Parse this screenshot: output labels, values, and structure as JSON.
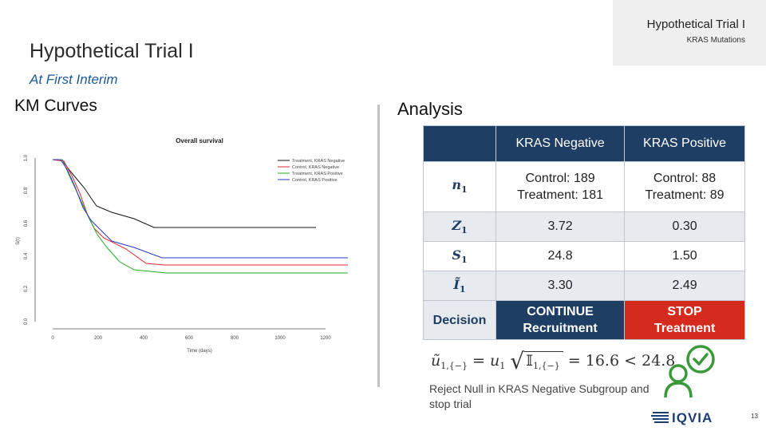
{
  "header": {
    "tag_title": "Hypothetical Trial I",
    "tag_subtitle": "KRAS Mutations",
    "title": "Hypothetical Trial I",
    "subtitle": "At First Interim",
    "left_heading": "KM Curves",
    "right_heading": "Analysis"
  },
  "km_plot": {
    "title": "Overall survival",
    "xlabel": "Time (days)",
    "ylabel": "S(t)",
    "x_ticks": [
      "0",
      "200",
      "400",
      "600",
      "800",
      "1000",
      "1200"
    ],
    "y_ticks": [
      "0.0",
      "0.2",
      "0.4",
      "0.6",
      "0.8",
      "1.0"
    ],
    "legend": [
      {
        "label": "Treatment, KRAS Negative",
        "color": "#111111"
      },
      {
        "label": "Control, KRAS Negative",
        "color": "#e0242c"
      },
      {
        "label": "Treatment, KRAS Positive",
        "color": "#22aa22"
      },
      {
        "label": "Control, KRAS Positive",
        "color": "#2a35c9"
      }
    ]
  },
  "table": {
    "columns": [
      "KRAS Negative",
      "KRAS Positive"
    ],
    "rows": {
      "n": {
        "symbol": "n",
        "sub": "1",
        "neg_l1": "Control: 189",
        "neg_l2": "Treatment: 181",
        "pos_l1": "Control: 88",
        "pos_l2": "Treatment: 89"
      },
      "z": {
        "symbol": "Z",
        "sub": "1",
        "neg": "3.72",
        "pos": "0.30"
      },
      "s": {
        "symbol": "S",
        "sub": "1",
        "neg": "24.8",
        "pos": "1.50"
      },
      "i": {
        "symbol": "Ĩ",
        "sub": "1",
        "neg": "3.30",
        "pos": "2.49"
      },
      "decision": {
        "label": "Decision",
        "neg_l1": "CONTINUE",
        "neg_l2": "Recruitment",
        "pos_l1": "STOP",
        "pos_l2": "Treatment"
      }
    }
  },
  "formula": {
    "lhs": "ũ",
    "lhs_sub": "1,{−}",
    "u": "u",
    "u_sub": "1",
    "radicand": "𝕀",
    "radicand_sub": "1,{−}",
    "rhs": "= 16.6 < 24.8"
  },
  "conclusion": "Reject Null in KRAS Negative Subgroup and stop trial",
  "logo_text": "IQVIA",
  "page_number": "13",
  "colors": {
    "navy": "#1f3e63",
    "stop_red": "#d52b1e",
    "accent_green": "#3a9a3a",
    "logo_blue": "#1b3f73"
  }
}
